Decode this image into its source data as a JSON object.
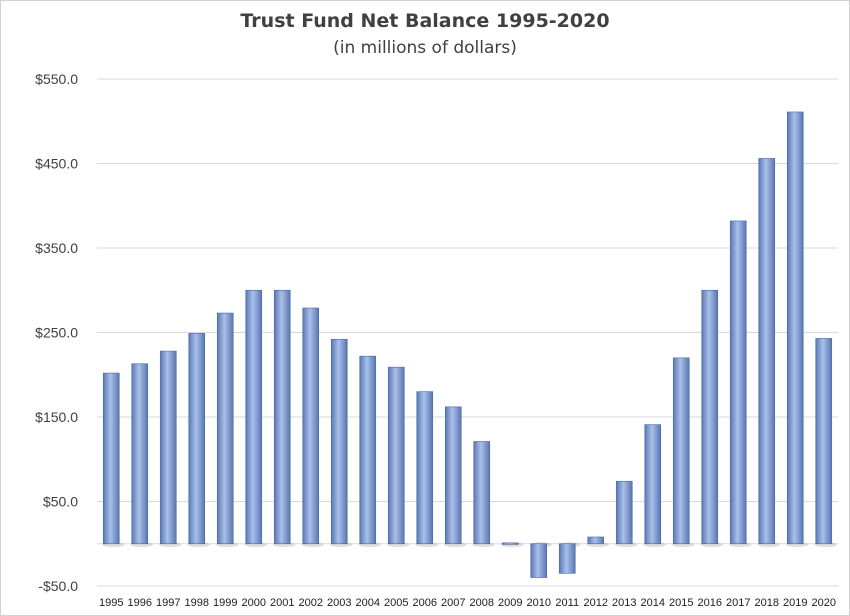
{
  "chart_data": {
    "type": "bar",
    "title": "Trust Fund Net Balance 1995-2020",
    "subtitle": "(in millions of dollars)",
    "xlabel": "",
    "ylabel": "",
    "ylim": [
      -50,
      550
    ],
    "yticks": [
      -50,
      50,
      150,
      250,
      350,
      450,
      550
    ],
    "ytick_labels": [
      "-$50.0",
      "$50.0",
      "$150.0",
      "$250.0",
      "$350.0",
      "$450.0",
      "$550.0"
    ],
    "grid": true,
    "legend": "none",
    "bar_color": "#7f9ed6",
    "categories": [
      "1995",
      "1996",
      "1997",
      "1998",
      "1999",
      "2000",
      "2001",
      "2002",
      "2003",
      "2004",
      "2005",
      "2006",
      "2007",
      "2008",
      "2009",
      "2010",
      "2011",
      "2012",
      "2013",
      "2014",
      "2015",
      "2016",
      "2017",
      "2018",
      "2019",
      "2020"
    ],
    "values": [
      202,
      213,
      228,
      249,
      273,
      300,
      300,
      279,
      242,
      222,
      209,
      180,
      162,
      121,
      1,
      -40,
      -35,
      8,
      74,
      141,
      220,
      300,
      382,
      456,
      511,
      243
    ]
  }
}
